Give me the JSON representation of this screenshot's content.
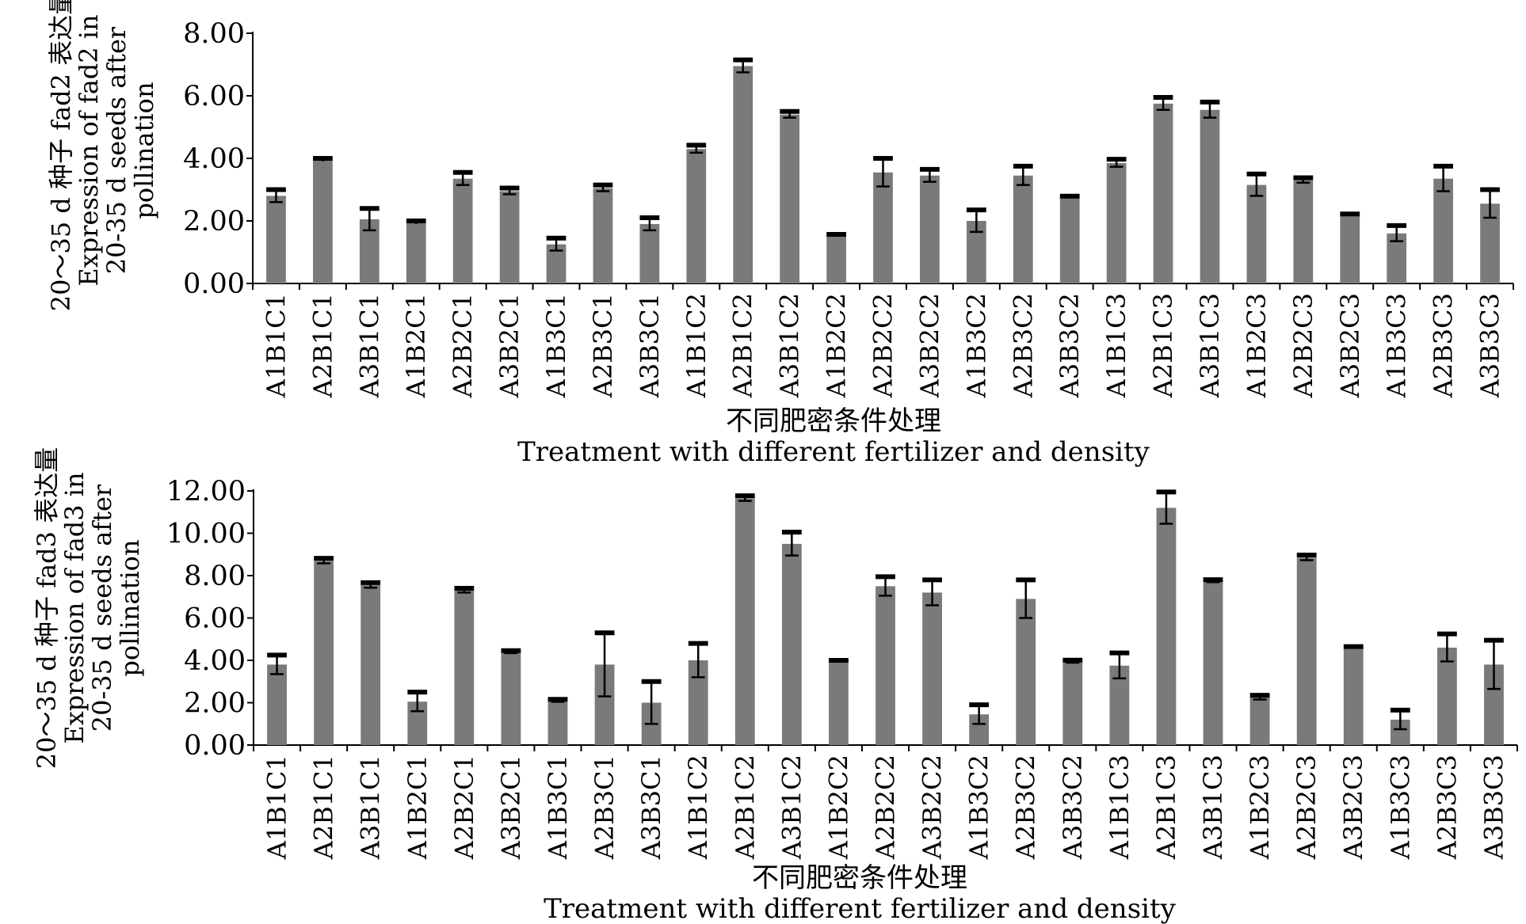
{
  "chart_data": [
    {
      "type": "bar",
      "ylabel_lines": [
        "20～35 d 种子 fad2 表达量",
        "Expression of fad2 in",
        "20-35 d seeds after",
        "pollination"
      ],
      "xlabel_lines": [
        "不同肥密条件处理",
        "Treatment with different fertilizer and density"
      ],
      "ylim": [
        0,
        8
      ],
      "yticks": [
        "0.00",
        "2.00",
        "4.00",
        "6.00",
        "8.00"
      ],
      "categories": [
        "A1B1C1",
        "A2B1C1",
        "A3B1C1",
        "A1B2C1",
        "A2B2C1",
        "A3B2C1",
        "A1B3C1",
        "A2B3C1",
        "A3B3C1",
        "A1B1C2",
        "A2B1C2",
        "A3B1C2",
        "A1B2C2",
        "A2B2C2",
        "A3B2C2",
        "A1B3C2",
        "A2B3C2",
        "A3B3C2",
        "A1B1C3",
        "A2B1C3",
        "A3B1C3",
        "A1B2C3",
        "A2B2C3",
        "A3B2C3",
        "A1B3C3",
        "A2B3C3",
        "A3B3C3"
      ],
      "values": [
        2.8,
        3.95,
        2.05,
        1.95,
        3.35,
        2.95,
        1.25,
        3.05,
        1.9,
        4.3,
        6.95,
        5.4,
        1.55,
        3.55,
        3.45,
        2.0,
        3.45,
        2.75,
        3.85,
        5.75,
        5.55,
        3.15,
        3.3,
        2.2,
        1.6,
        3.35,
        2.55
      ],
      "errors": [
        0.2,
        0.05,
        0.35,
        0.05,
        0.2,
        0.1,
        0.2,
        0.1,
        0.2,
        0.12,
        0.2,
        0.1,
        0.02,
        0.45,
        0.2,
        0.35,
        0.3,
        0.04,
        0.12,
        0.2,
        0.25,
        0.35,
        0.08,
        0.02,
        0.25,
        0.4,
        0.45
      ]
    },
    {
      "type": "bar",
      "ylabel_lines": [
        "20～35 d 种子 fad3 表达量",
        "Expression of fad3 in",
        "20-35 d seeds after",
        "pollination"
      ],
      "xlabel_lines": [
        "不同肥密条件处理",
        "Treatment with different fertilizer and density"
      ],
      "ylim": [
        0,
        12
      ],
      "yticks": [
        "0.00",
        "2.00",
        "4.00",
        "6.00",
        "8.00",
        "10.00",
        "12.00"
      ],
      "categories": [
        "A1B1C1",
        "A2B1C1",
        "A3B1C1",
        "A1B2C1",
        "A2B2C1",
        "A3B2C1",
        "A1B3C1",
        "A2B3C1",
        "A3B3C1",
        "A1B1C2",
        "A2B1C2",
        "A3B1C2",
        "A1B2C2",
        "A2B2C2",
        "A3B2C2",
        "A1B3C2",
        "A2B3C2",
        "A3B3C2",
        "A1B1C3",
        "A2B1C3",
        "A3B1C3",
        "A1B2C3",
        "A2B2C3",
        "A3B2C3",
        "A1B3C3",
        "A2B3C3",
        "A3B3C3"
      ],
      "values": [
        3.8,
        8.7,
        7.55,
        2.05,
        7.3,
        4.4,
        2.1,
        3.8,
        2.0,
        4.0,
        11.65,
        9.5,
        4.0,
        7.5,
        7.2,
        1.45,
        6.9,
        3.95,
        3.75,
        11.2,
        7.75,
        2.25,
        8.85,
        4.65,
        1.2,
        4.6,
        3.8
      ],
      "errors": [
        0.45,
        0.12,
        0.12,
        0.45,
        0.1,
        0.06,
        0.06,
        1.5,
        1.0,
        0.8,
        0.12,
        0.55,
        0.0,
        0.45,
        0.6,
        0.45,
        0.9,
        0.06,
        0.6,
        0.75,
        0.06,
        0.1,
        0.12,
        0.0,
        0.45,
        0.65,
        1.15
      ]
    }
  ]
}
